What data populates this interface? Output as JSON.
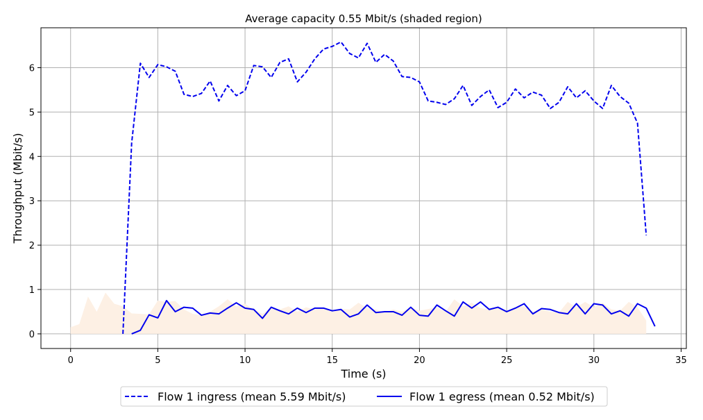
{
  "chart_data": {
    "type": "line",
    "title": "Average capacity 0.55 Mbit/s (shaded region)",
    "xlabel": "Time (s)",
    "ylabel": "Throughput (Mbit/s)",
    "xlim": [
      -1.7,
      35.3
    ],
    "ylim": [
      -0.33,
      6.9
    ],
    "xticks": [
      0,
      5,
      10,
      15,
      20,
      25,
      30,
      35
    ],
    "yticks": [
      0,
      1,
      2,
      3,
      4,
      5,
      6
    ],
    "grid": true,
    "legend_position": "bottom-center",
    "capacity": {
      "x": [
        0,
        0.5,
        1,
        1.5,
        2,
        2.5,
        3,
        3.5,
        4,
        4.5,
        5,
        5.5,
        6,
        6.5,
        7,
        7.5,
        8,
        8.5,
        9,
        9.5,
        10,
        10.5,
        11,
        11.5,
        12,
        12.5,
        13,
        13.5,
        14,
        14.5,
        15,
        15.5,
        16,
        16.5,
        17,
        17.5,
        18,
        18.5,
        19,
        19.5,
        20,
        20.5,
        21,
        21.5,
        22,
        22.5,
        23,
        23.5,
        24,
        24.5,
        25,
        25.5,
        26,
        26.5,
        27,
        27.5,
        28,
        28.5,
        29,
        29.5,
        30,
        30.5,
        31,
        31.5,
        32,
        32.5,
        33
      ],
      "values": [
        0.15,
        0.22,
        0.84,
        0.5,
        0.93,
        0.68,
        0.62,
        0.46,
        0.45,
        0.44,
        0.75,
        0.72,
        0.74,
        0.55,
        0.45,
        0.42,
        0.5,
        0.62,
        0.78,
        0.62,
        0.68,
        0.55,
        0.45,
        0.6,
        0.55,
        0.62,
        0.5,
        0.6,
        0.55,
        0.58,
        0.5,
        0.56,
        0.55,
        0.7,
        0.58,
        0.55,
        0.48,
        0.55,
        0.5,
        0.6,
        0.52,
        0.56,
        0.6,
        0.5,
        0.78,
        0.62,
        0.7,
        0.58,
        0.55,
        0.62,
        0.5,
        0.6,
        0.62,
        0.5,
        0.55,
        0.5,
        0.48,
        0.72,
        0.6,
        0.72,
        0.6,
        0.7,
        0.55,
        0.52,
        0.72,
        0.6,
        0.3
      ],
      "color": "#fdf0e4"
    },
    "series": [
      {
        "name": "Flow 1 ingress (mean 5.59 Mbit/s)",
        "style": "dashed",
        "color": "#0000ee",
        "x": [
          3.0,
          3.5,
          4.0,
          4.5,
          5.0,
          5.5,
          6.0,
          6.5,
          7.0,
          7.5,
          8.0,
          8.5,
          9.0,
          9.5,
          10.0,
          10.5,
          11.0,
          11.5,
          12.0,
          12.5,
          13.0,
          13.5,
          14.0,
          14.5,
          15.0,
          15.5,
          16.0,
          16.5,
          17.0,
          17.5,
          18.0,
          18.5,
          19.0,
          19.5,
          20.0,
          20.5,
          21.0,
          21.5,
          22.0,
          22.5,
          23.0,
          23.5,
          24.0,
          24.5,
          25.0,
          25.5,
          26.0,
          26.5,
          27.0,
          27.5,
          28.0,
          28.5,
          29.0,
          29.5,
          30.0,
          30.5,
          31.0,
          31.5,
          32.0,
          32.5,
          33.0
        ],
        "values": [
          0.0,
          4.3,
          6.1,
          5.78,
          6.07,
          6.02,
          5.92,
          5.4,
          5.35,
          5.42,
          5.7,
          5.25,
          5.6,
          5.37,
          5.48,
          6.05,
          6.02,
          5.78,
          6.12,
          6.2,
          5.68,
          5.9,
          6.2,
          6.42,
          6.48,
          6.58,
          6.32,
          6.22,
          6.55,
          6.12,
          6.3,
          6.15,
          5.8,
          5.78,
          5.68,
          5.25,
          5.22,
          5.17,
          5.3,
          5.6,
          5.15,
          5.35,
          5.5,
          5.1,
          5.22,
          5.52,
          5.32,
          5.45,
          5.38,
          5.08,
          5.22,
          5.57,
          5.32,
          5.48,
          5.25,
          5.08,
          5.6,
          5.35,
          5.2,
          4.75,
          2.22
        ]
      },
      {
        "name": "Flow 1 egress (mean 0.52 Mbit/s)",
        "style": "solid",
        "color": "#0000ee",
        "x": [
          3.5,
          4.0,
          4.5,
          5.0,
          5.5,
          6.0,
          6.5,
          7.0,
          7.5,
          8.0,
          8.5,
          9.0,
          9.5,
          10.0,
          10.5,
          11.0,
          11.5,
          12.0,
          12.5,
          13.0,
          13.5,
          14.0,
          14.5,
          15.0,
          15.5,
          16.0,
          16.5,
          17.0,
          17.5,
          18.0,
          18.5,
          19.0,
          19.5,
          20.0,
          20.5,
          21.0,
          21.5,
          22.0,
          22.5,
          23.0,
          23.5,
          24.0,
          24.5,
          25.0,
          25.5,
          26.0,
          26.5,
          27.0,
          27.5,
          28.0,
          28.5,
          29.0,
          29.5,
          30.0,
          30.5,
          31.0,
          31.5,
          32.0,
          32.5,
          33.0,
          33.5
        ],
        "values": [
          0.0,
          0.08,
          0.43,
          0.36,
          0.75,
          0.5,
          0.6,
          0.58,
          0.42,
          0.47,
          0.45,
          0.58,
          0.7,
          0.58,
          0.55,
          0.35,
          0.6,
          0.52,
          0.45,
          0.58,
          0.48,
          0.58,
          0.58,
          0.52,
          0.55,
          0.38,
          0.45,
          0.65,
          0.48,
          0.5,
          0.5,
          0.42,
          0.6,
          0.42,
          0.4,
          0.65,
          0.52,
          0.4,
          0.72,
          0.58,
          0.72,
          0.55,
          0.6,
          0.5,
          0.58,
          0.68,
          0.45,
          0.57,
          0.55,
          0.48,
          0.45,
          0.68,
          0.45,
          0.68,
          0.65,
          0.45,
          0.52,
          0.4,
          0.68,
          0.58,
          0.17
        ]
      }
    ]
  }
}
